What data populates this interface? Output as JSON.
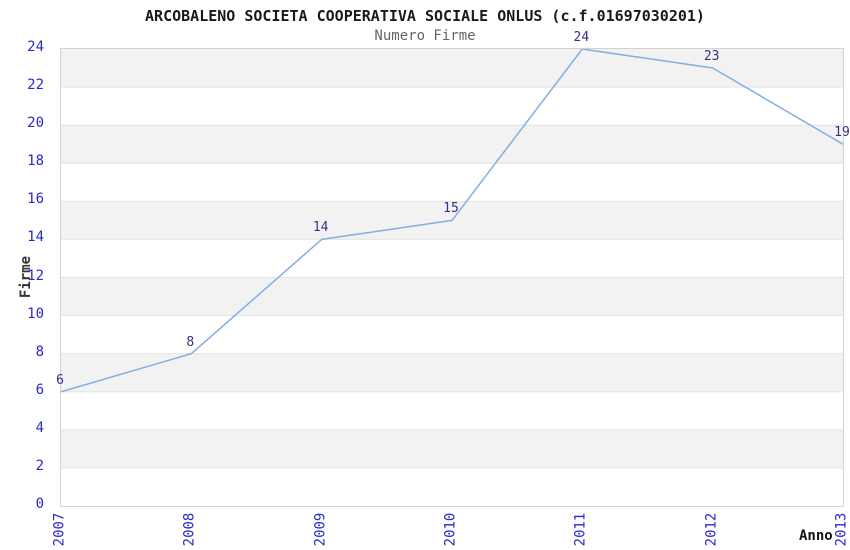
{
  "chart_data": {
    "type": "line",
    "title": "ARCOBALENO SOCIETA COOPERATIVA SOCIALE ONLUS (c.f.01697030201)",
    "subtitle": "Numero Firme",
    "xlabel": "Anno",
    "ylabel": "Firme",
    "categories": [
      "2007",
      "2008",
      "2009",
      "2010",
      "2011",
      "2012",
      "2013"
    ],
    "values": [
      6,
      8,
      14,
      15,
      24,
      23,
      19
    ],
    "point_labels": [
      "6",
      "8",
      "14",
      "15",
      "24",
      "23",
      "19"
    ],
    "ylim": [
      0,
      24
    ],
    "ytick_step": 2,
    "yticks": [
      0,
      2,
      4,
      6,
      8,
      10,
      12,
      14,
      16,
      18,
      20,
      22,
      24
    ],
    "grid": "horizontal alternating bands, gray band at top interval",
    "legend": "none",
    "colors": {
      "line": "#82aee2",
      "tick_labels": "#2a2acc",
      "data_labels": "#333380",
      "band_gray": "#f2f2f2",
      "band_white": "#ffffff",
      "gridline": "#e4e4e4",
      "plot_border": "#d2d2d2",
      "title": "#1a1a1a",
      "subtitle": "#666666",
      "axis_title": "#333333"
    }
  }
}
